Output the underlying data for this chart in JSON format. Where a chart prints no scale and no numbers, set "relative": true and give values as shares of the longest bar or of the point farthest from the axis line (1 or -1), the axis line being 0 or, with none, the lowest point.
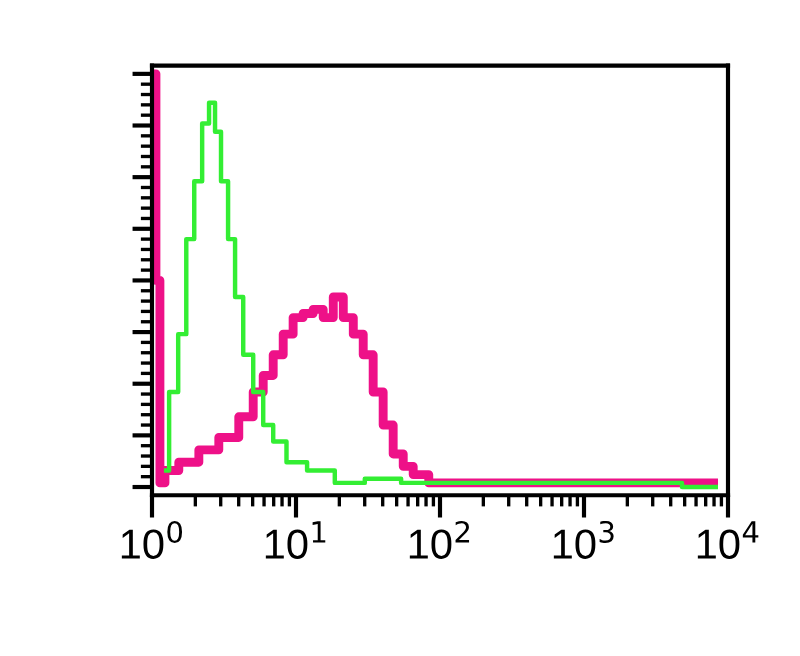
{
  "chart_data": {
    "type": "step",
    "relative": true,
    "log": "x",
    "xlim": [
      1,
      10000
    ],
    "xticks": [
      {
        "value": 1,
        "label": "10$^{0}$"
      },
      {
        "value": 10,
        "label": "10$^{1}$"
      },
      {
        "value": 100,
        "label": "10$^{2}$"
      },
      {
        "value": 1000,
        "label": "10$^{3}$"
      },
      {
        "value": 10000,
        "label": "10$^{4}$"
      }
    ],
    "tick_labels": "x",
    "grid": false,
    "series": [
      {
        "color": "#33ee33",
        "x": [
          1.21,
          1.42,
          1.62,
          1.84,
          2.09,
          2.37,
          2.61,
          2.87,
          3.16,
          3.59,
          3.96,
          4.64,
          5.45,
          6.39,
          7.5,
          9.68,
          14.2,
          23.0,
          37.1,
          70.3,
          114,
          408,
          1067,
          8520
        ],
        "values": [
          0.04,
          0.23,
          0.37,
          0.6,
          0.74,
          0.88,
          0.93,
          0.86,
          0.74,
          0.6,
          0.46,
          0.32,
          0.23,
          0.15,
          0.11,
          0.06,
          0.04,
          0.01,
          0.02,
          0.01,
          0.01,
          0.01,
          0.01,
          0
        ]
      },
      {
        "color": "#ee1188",
        "x": [
          1.03,
          1.1,
          1.17,
          1.29,
          1.78,
          2.45,
          3.37,
          4.64,
          5.45,
          6.39,
          7.5,
          8.8,
          10.3,
          12.1,
          14.2,
          16.7,
          19.6,
          23.0,
          27.0,
          31.6,
          37.1,
          43.5,
          51.1,
          60.0,
          70.3,
          96.8,
          184,
          8520
        ],
        "values": [
          1.0,
          0.5,
          0.01,
          0.04,
          0.06,
          0.09,
          0.12,
          0.17,
          0.23,
          0.27,
          0.32,
          0.37,
          0.41,
          0.42,
          0.43,
          0.41,
          0.46,
          0.41,
          0.37,
          0.32,
          0.23,
          0.15,
          0.08,
          0.05,
          0.03,
          0.01,
          0.01,
          0.01
        ]
      }
    ]
  }
}
